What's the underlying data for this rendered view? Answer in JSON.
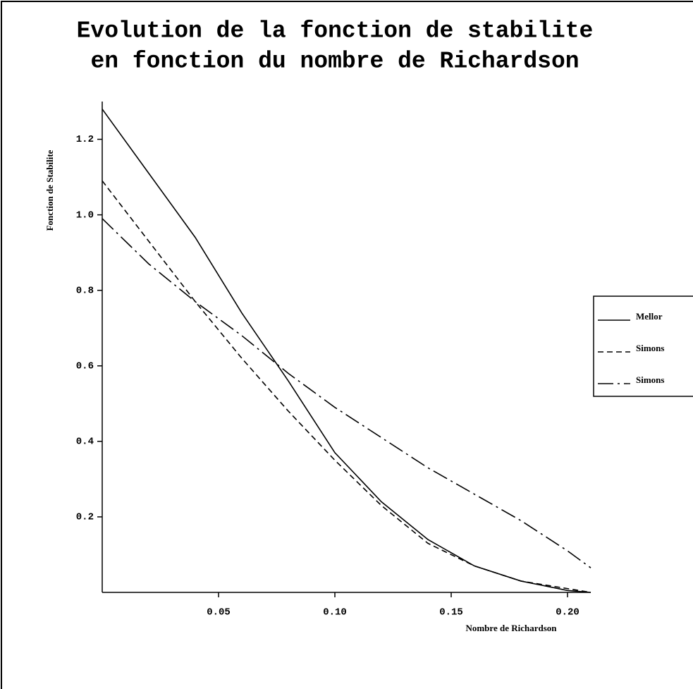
{
  "chart_data": {
    "type": "line",
    "title": [
      "Evolution de la fonction de stabilite",
      "en fonction du nombre de Richardson"
    ],
    "x_label": "Nombre de Richardson",
    "y_label": "Fonction de Stabilite",
    "x": [
      0,
      0.02,
      0.04,
      0.06,
      0.08,
      0.1,
      0.12,
      0.14,
      0.16,
      0.18,
      0.2,
      0.21
    ],
    "series": [
      {
        "name": "Mellor",
        "color": "#000000",
        "dash": "solid",
        "values": [
          1.28,
          1.11,
          0.94,
          0.74,
          0.56,
          0.37,
          0.24,
          0.14,
          0.07,
          0.03,
          0.005,
          0
        ]
      },
      {
        "name": "Simons",
        "color": "#000000",
        "dash": "dashed",
        "values": [
          1.09,
          0.93,
          0.77,
          0.62,
          0.48,
          0.35,
          0.23,
          0.13,
          0.07,
          0.03,
          0.01,
          0
        ]
      },
      {
        "name": "Simons",
        "color": "#000000",
        "dash": "dashdot",
        "values": [
          0.99,
          0.87,
          0.77,
          0.68,
          0.58,
          0.49,
          0.41,
          0.33,
          0.26,
          0.19,
          0.11,
          0.065
        ]
      }
    ],
    "xlim": [
      0,
      0.21
    ],
    "ylim": [
      0,
      1.3
    ],
    "xticks": [
      0.05,
      {
        "value": 0.1,
        "label": "0.10"
      },
      0.15,
      {
        "value": 0.2,
        "label": "0.20"
      }
    ],
    "yticks": [
      0.2,
      0.4,
      0.6,
      0.8,
      {
        "value": 1,
        "label": "1.0"
      },
      1.2
    ],
    "grid": false,
    "legend": "right"
  }
}
